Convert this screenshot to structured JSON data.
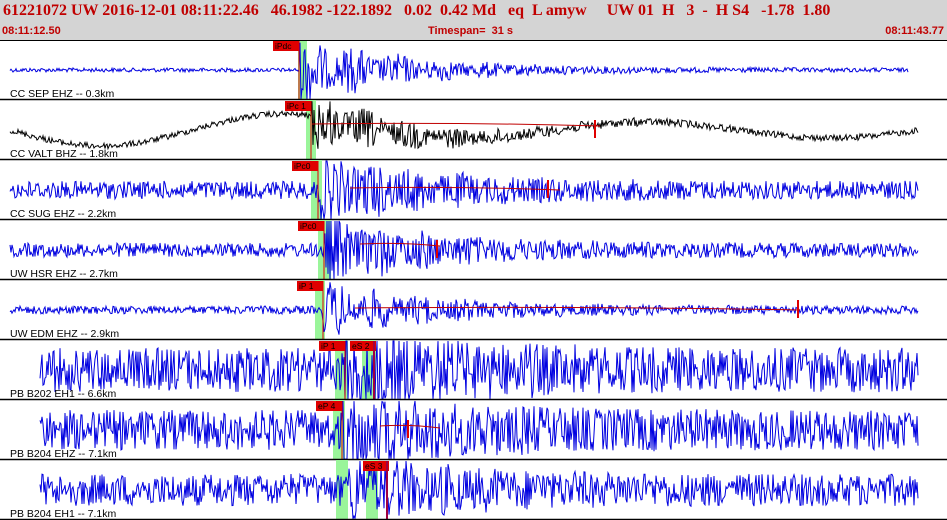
{
  "header": {
    "title": "61221072 UW 2016-12-01 08:11:22.46   46.1982 -122.1892   0.02  0.42 Md   eq  L amyw     UW 01  H   3  -  H S4   -1.78  1.80",
    "start_time": "08:11:12.50",
    "end_time": "08:11:43.77",
    "timespan_label": "Timespan=",
    "timespan_value": "31 s"
  },
  "colors": {
    "header_bg": "#d4d4d4",
    "header_text": "#c00000",
    "trace_blue": "#0000e0",
    "trace_black": "#000000",
    "pick_red": "#e00000",
    "window_green": "#9af59a",
    "trace_line_red": "#c00000"
  },
  "traces": [
    {
      "label": "CC SEP EHZ -- 0.3km",
      "color": "blue",
      "p_pick": "iPdc",
      "s_pick": null
    },
    {
      "label": "CC VALT BHZ -- 1.8km",
      "color": "black",
      "p_pick": "iPc 1",
      "s_pick": null
    },
    {
      "label": "CC SUG EHZ -- 2.2km",
      "color": "blue",
      "p_pick": "iPc0",
      "s_pick": null
    },
    {
      "label": "UW HSR EHZ -- 2.7km",
      "color": "blue",
      "p_pick": "iPc0",
      "s_pick": null
    },
    {
      "label": "UW EDM EHZ -- 2.9km",
      "color": "blue",
      "p_pick": "iP 1",
      "s_pick": null
    },
    {
      "label": "PB B202 EH1 -- 6.6km",
      "color": "blue",
      "p_pick": "iP 1",
      "s_pick": "eS 2"
    },
    {
      "label": "PB B204 EHZ -- 7.1km",
      "color": "blue",
      "p_pick": "eP 4",
      "s_pick": null
    },
    {
      "label": "PB B204 EH1 -- 7.1km",
      "color": "blue",
      "p_pick": null,
      "s_pick": "eS 3"
    }
  ]
}
